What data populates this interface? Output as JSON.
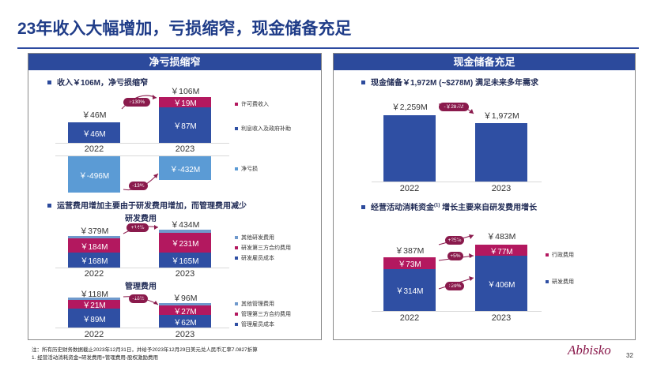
{
  "title": "23年收入大幅增加，亏损缩窄，现金储备充足",
  "left_panel": {
    "header": "净亏损缩窄",
    "bullet1": "收入￥106M，净亏损缩窄",
    "revenue": {
      "y2022_total": "￥46M",
      "y2022_bar": "￥46M",
      "y2023_total": "￥106M",
      "y2023_licensing": "￥19M",
      "y2023_interest": "￥87M",
      "growth": "+130%",
      "legend_licensing": "许可费收入",
      "legend_interest": "利息收入及政府补助"
    },
    "years": [
      "2022",
      "2023"
    ],
    "netloss": {
      "y2022": "￥-496M",
      "y2023": "￥-432M",
      "change": "-13%",
      "legend": "净亏损"
    },
    "bullet2": "运营费用增加主要由于研发费用增加，而管理费用减少",
    "rd": {
      "label": "研发费用",
      "y2022_total": "￥379M",
      "y2022_third": "￥184M",
      "y2022_staff": "￥168M",
      "y2023_total": "￥434M",
      "y2023_third": "￥231M",
      "y2023_staff": "￥165M",
      "growth": "+14%",
      "legend_other": "其他研发费用",
      "legend_third": "研发第三方合约费用",
      "legend_staff": "研发雇员成本"
    },
    "ga": {
      "label": "管理费用",
      "y2022_total": "￥118M",
      "y2022_third": "￥21M",
      "y2022_staff": "￥89M",
      "y2023_total": "￥96M",
      "y2023_third": "￥27M",
      "y2023_staff": "￥62M",
      "change": "-18%",
      "legend_other": "其他管理费用",
      "legend_third": "管理第三方合约费用",
      "legend_staff": "管理雇员成本"
    }
  },
  "right_panel": {
    "header": "现金储备充足",
    "bullet1": "现金储备￥1,972M (~$278M) 满足未来多年需求",
    "cash": {
      "y2022": "￥2,259M",
      "y2023": "￥1,972M",
      "change": "-￥287M"
    },
    "years": [
      "2022",
      "2023"
    ],
    "bullet2_pre": "经营活动消耗资金",
    "bullet2_sup": "(1)",
    "bullet2_post": " 增长主要来自研发费用增长",
    "burn": {
      "y2022_total": "￥387M",
      "y2022_admin": "￥73M",
      "y2022_rd": "￥314M",
      "y2023_total": "￥483M",
      "y2023_admin": "￥77M",
      "y2023_rd": "￥406M",
      "growth_total": "+25%",
      "growth_admin": "+5%",
      "growth_rd": "+29%",
      "legend_admin": "行政费用",
      "legend_rd": "研发费用"
    }
  },
  "footnote1": "注：所有历史财务数据截止2023年12月31日，并给予2023年12月29日美元兑人民币汇率7.0827折算",
  "footnote2": "1. 经营活动消耗资金=研发费用+管理费用-股权激励费用",
  "logo": "Abbisko",
  "page_number": "32",
  "colors": {
    "title": "#1f3c88",
    "header_bg": "#2c4a9c",
    "bar_blue": "#2f4fa3",
    "bar_magenta": "#b3185f",
    "bar_lightblue": "#5b9bd5",
    "pill": "#8a1a4c"
  }
}
